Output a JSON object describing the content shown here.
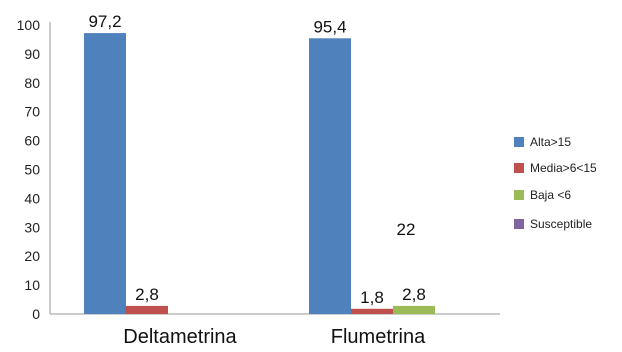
{
  "chart_data": {
    "type": "bar",
    "categories": [
      "Deltametrina",
      "Flumetrina"
    ],
    "series": [
      {
        "name": "Alta>15",
        "values": [
          97.2,
          95.4
        ],
        "labels": [
          "97,2",
          "95,4"
        ],
        "color": "#4f81bd"
      },
      {
        "name": "Media>6<15",
        "values": [
          2.8,
          1.8
        ],
        "labels": [
          "2,8",
          "1,8"
        ],
        "color": "#c0504d"
      },
      {
        "name": "Baja <6",
        "values": [
          0,
          2.8
        ],
        "labels": [
          "",
          "2,8"
        ],
        "color": "#9bbb59"
      },
      {
        "name": "Susceptible",
        "values": [
          0,
          0
        ],
        "labels": [
          "",
          ""
        ],
        "color": "#8064a2"
      }
    ],
    "ylim": [
      0,
      100
    ],
    "yticks": [
      "0",
      "10",
      "20",
      "30",
      "40",
      "50",
      "60",
      "70",
      "80",
      "90",
      "100"
    ],
    "annotation": "22",
    "legend_position": "right",
    "grid": false
  }
}
